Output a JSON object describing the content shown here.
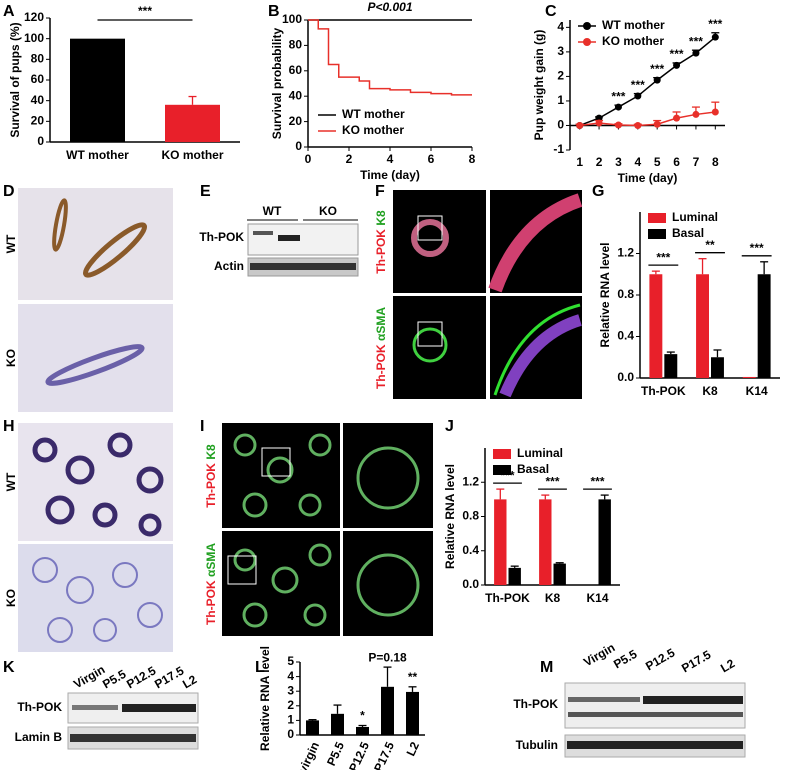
{
  "chart_data": [
    {
      "panel": "A",
      "type": "bar",
      "ylabel": "Survival of pups (%)",
      "categories": [
        "WT mother",
        "KO mother"
      ],
      "values": [
        100,
        36
      ],
      "errors": [
        0,
        8
      ],
      "colors": [
        "#000000",
        "#e8202a"
      ],
      "ylim": [
        0,
        120
      ],
      "yticks": [
        0,
        20,
        40,
        60,
        80,
        100,
        120
      ],
      "annotations": [
        {
          "text": "***"
        }
      ]
    },
    {
      "panel": "B",
      "type": "line",
      "step": true,
      "xlabel": "Time (day)",
      "ylabel": "Survival probability",
      "xlim": [
        0,
        8
      ],
      "xticks": [
        0,
        2,
        4,
        6,
        8
      ],
      "ylim": [
        0,
        100
      ],
      "yticks": [
        0,
        20,
        40,
        60,
        80,
        100
      ],
      "legend": "lower left",
      "annotations": [
        {
          "text": "P<0.001"
        }
      ],
      "series": [
        {
          "name": "WT mother",
          "color": "#000000",
          "x": [
            0,
            8
          ],
          "values": [
            100,
            100
          ]
        },
        {
          "name": "KO mother",
          "color": "#e8302a",
          "x": [
            0,
            0.5,
            1,
            1.5,
            2.5,
            3,
            4,
            5,
            6,
            7,
            8
          ],
          "values": [
            100,
            93,
            65,
            55,
            52,
            46,
            45,
            43,
            42,
            41,
            41
          ]
        }
      ]
    },
    {
      "panel": "C",
      "type": "line",
      "markers": true,
      "xlabel": "Time (day)",
      "ylabel": "Pup weight gain (g)",
      "xlim": [
        0.5,
        8.5
      ],
      "xticks": [
        1,
        2,
        3,
        4,
        5,
        6,
        7,
        8
      ],
      "ylim": [
        -1,
        4.3
      ],
      "yticks": [
        -1,
        0,
        1,
        2,
        3,
        4
      ],
      "legend": "upper left",
      "annotations": [
        {
          "x": 3,
          "text": "***"
        },
        {
          "x": 4,
          "text": "***"
        },
        {
          "x": 5,
          "text": "***"
        },
        {
          "x": 6,
          "text": "***"
        },
        {
          "x": 7,
          "text": "***"
        },
        {
          "x": 8,
          "text": "***"
        }
      ],
      "series": [
        {
          "name": "WT mother",
          "color": "#000000",
          "x": [
            1,
            2,
            3,
            4,
            5,
            6,
            7,
            8
          ],
          "values": [
            0,
            0.3,
            0.75,
            1.2,
            1.85,
            2.45,
            2.95,
            3.6
          ],
          "errors": [
            0.05,
            0.05,
            0.08,
            0.1,
            0.1,
            0.1,
            0.12,
            0.18
          ]
        },
        {
          "name": "KO mother",
          "color": "#e8302a",
          "x": [
            1,
            2,
            3,
            4,
            5,
            6,
            7,
            8
          ],
          "values": [
            0,
            0.1,
            0.02,
            0,
            0.05,
            0.3,
            0.45,
            0.55
          ],
          "errors": [
            0.05,
            0.1,
            0.05,
            0.05,
            0.15,
            0.25,
            0.3,
            0.4
          ]
        }
      ]
    },
    {
      "panel": "G",
      "type": "bar",
      "ylabel": "Relative RNA level",
      "categories": [
        "Th-POK",
        "K8",
        "K14"
      ],
      "ylim": [
        0,
        1.6
      ],
      "yticks": [
        {
          "value": 0,
          "label": "0.0"
        },
        0.4,
        0.8,
        1.2
      ],
      "legend": "upper left",
      "annotations": [
        {
          "category": "Th-POK",
          "text": "***"
        },
        {
          "category": "K8",
          "text": "**"
        },
        {
          "category": "K14",
          "text": "***"
        }
      ],
      "series": [
        {
          "name": "Luminal",
          "color": "#e8202a",
          "values": [
            1.0,
            1.0,
            0.01
          ],
          "errors": [
            0.03,
            0.15,
            0
          ]
        },
        {
          "name": "Basal",
          "color": "#000000",
          "values": [
            0.23,
            0.2,
            1.0
          ],
          "errors": [
            0.02,
            0.07,
            0.12
          ]
        }
      ]
    },
    {
      "panel": "J",
      "type": "bar",
      "ylabel": "Relative RNA level",
      "categories": [
        "Th-POK",
        "K8",
        "K14"
      ],
      "ylim": [
        0,
        1.6
      ],
      "yticks": [
        {
          "value": 0,
          "label": "0.0"
        },
        0.4,
        0.8,
        1.2
      ],
      "legend": "upper left",
      "annotations": [
        {
          "category": "Th-POK",
          "text": "***"
        },
        {
          "category": "K8",
          "text": "***"
        },
        {
          "category": "K14",
          "text": "***"
        }
      ],
      "series": [
        {
          "name": "Luminal",
          "color": "#e8202a",
          "values": [
            1.0,
            1.0,
            0
          ],
          "errors": [
            0.12,
            0.05,
            0
          ]
        },
        {
          "name": "Basal",
          "color": "#000000",
          "values": [
            0.2,
            0.25,
            1.0
          ],
          "errors": [
            0.02,
            0.01,
            0.05
          ]
        }
      ]
    },
    {
      "panel": "L",
      "type": "bar",
      "ylabel": "Relative RNA level",
      "categories": [
        "virgin",
        "P5.5",
        "P12.5",
        "P17.5",
        "L2"
      ],
      "values": [
        1.0,
        1.45,
        0.55,
        3.3,
        2.95
      ],
      "errors": [
        0.05,
        0.6,
        0.1,
        1.35,
        0.35
      ],
      "colors": [
        "#000000",
        "#000000",
        "#000000",
        "#000000",
        "#000000"
      ],
      "ylim": [
        0,
        5
      ],
      "yticks": [
        0,
        1,
        2,
        3,
        4,
        5
      ],
      "annotations": [
        {
          "category": "P12.5",
          "text": "*"
        },
        {
          "category": "P17.5",
          "text": "P=0.18"
        },
        {
          "category": "L2",
          "text": "**"
        }
      ]
    }
  ],
  "images": {
    "D": {
      "panel": "D",
      "rows": [
        "WT",
        "KO"
      ]
    },
    "E": {
      "panel": "E",
      "groups": [
        "WT",
        "KO"
      ],
      "rows": [
        "Th-POK",
        "Actin"
      ]
    },
    "F": {
      "panel": "F",
      "rows": [
        [
          "Th-POK",
          "K8"
        ],
        [
          "Th-POK",
          "αSMA"
        ]
      ]
    },
    "H": {
      "panel": "H",
      "rows": [
        "WT",
        "KO"
      ]
    },
    "I": {
      "panel": "I",
      "rows": [
        [
          "Th-POK",
          "K8"
        ],
        [
          "Th-POK",
          "αSMA"
        ]
      ]
    },
    "K": {
      "panel": "K",
      "lanes": [
        "Virgin",
        "P5.5",
        "P12.5",
        "P17.5",
        "L2"
      ],
      "rows": [
        "Th-POK",
        "Lamin B"
      ]
    },
    "M": {
      "panel": "M",
      "lanes": [
        "Virgin",
        "P5.5",
        "P12.5",
        "P17.5",
        "L2"
      ],
      "rows": [
        "Th-POK",
        "Tubulin"
      ]
    }
  }
}
